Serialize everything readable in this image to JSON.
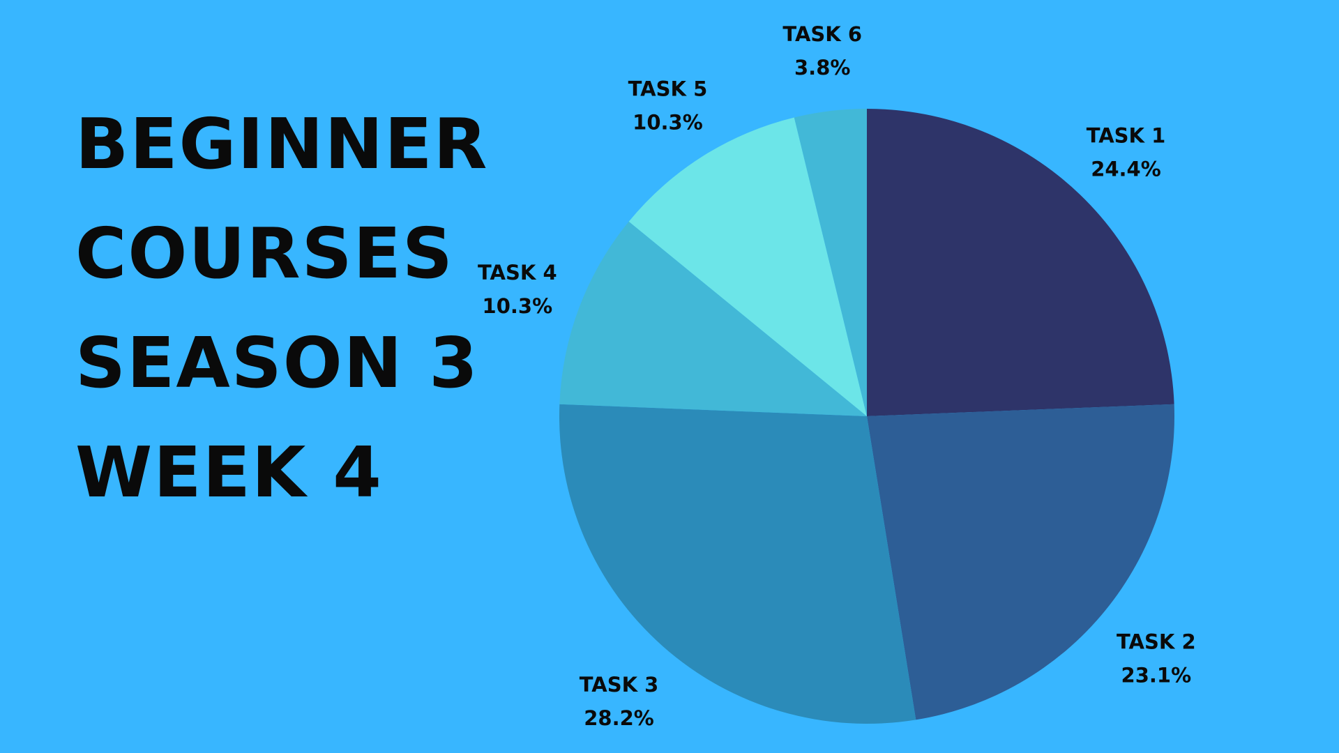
{
  "title_lines": [
    "BEGINNER",
    "COURSES",
    "SEASON 3",
    "WEEK 4"
  ],
  "chart_data": {
    "type": "pie",
    "title": "",
    "categories": [
      "TASK 1",
      "TASK 2",
      "TASK 3",
      "TASK 4",
      "TASK 5",
      "TASK 6"
    ],
    "values": [
      24.4,
      23.1,
      28.2,
      10.3,
      10.3,
      3.8
    ],
    "value_labels": [
      "24.4%",
      "23.1%",
      "28.2%",
      "10.3%",
      "10.3%",
      "3.8%"
    ],
    "colors": [
      "#2e3469",
      "#2d5e96",
      "#2b8bb9",
      "#42b8d7",
      "#6ce5e8",
      "#42b8d7"
    ],
    "start": "12 o'clock",
    "direction": "clockwise",
    "legend": "none"
  },
  "colors": {
    "background": "#38b6ff",
    "text": "#0a0a0a"
  }
}
